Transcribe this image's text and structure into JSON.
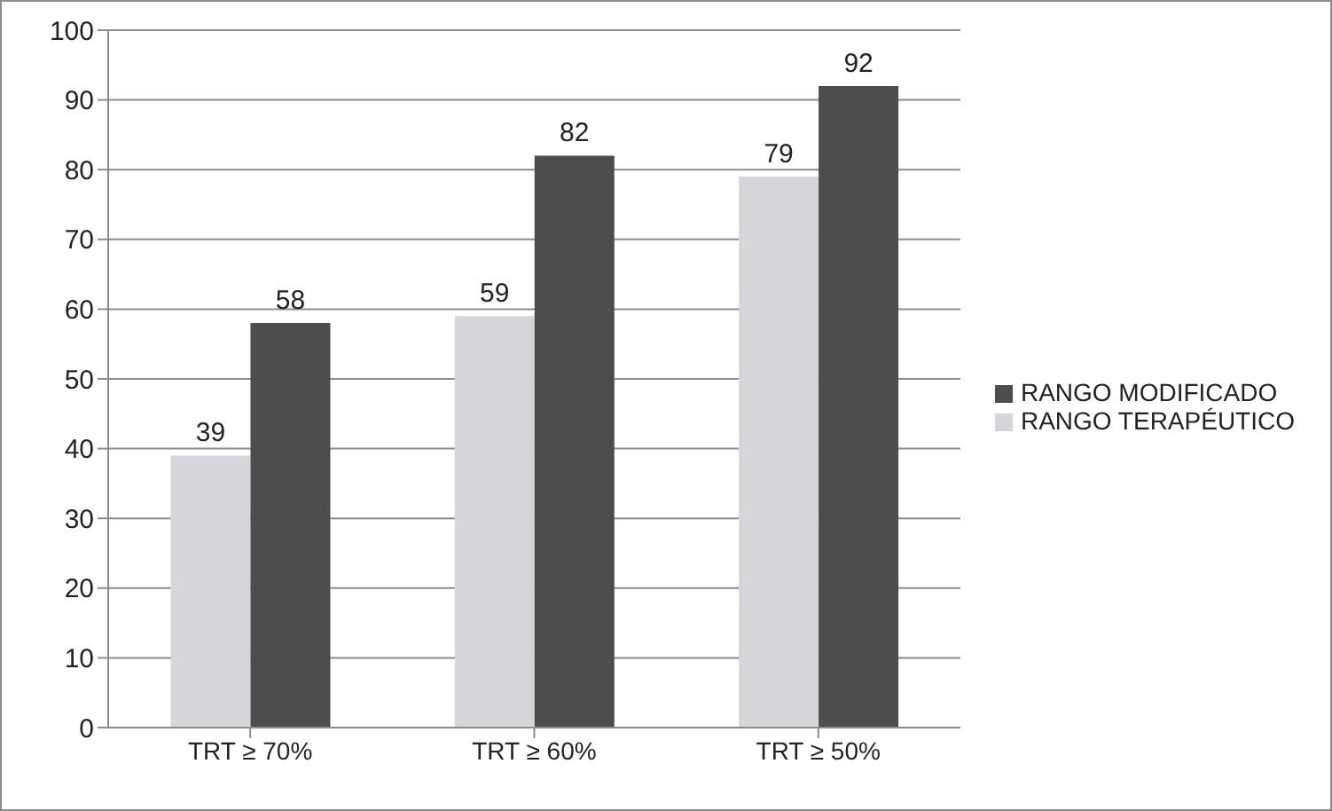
{
  "chart_data": {
    "type": "bar",
    "categories": [
      "TRT ≥ 70%",
      "TRT ≥ 60%",
      "TRT ≥ 50%"
    ],
    "series": [
      {
        "name": "RANGO TERAPÉUTICO",
        "color": "#d6d6da",
        "values": [
          39,
          59,
          79
        ]
      },
      {
        "name": "RANGO MODIFICADO",
        "color": "#4d4d4d",
        "values": [
          58,
          82,
          92
        ]
      }
    ],
    "ylim": [
      0,
      100
    ],
    "yticks": [
      0,
      10,
      20,
      30,
      40,
      50,
      60,
      70,
      80,
      90,
      100
    ],
    "grid": "y",
    "legend": "right",
    "data_labels": true
  }
}
